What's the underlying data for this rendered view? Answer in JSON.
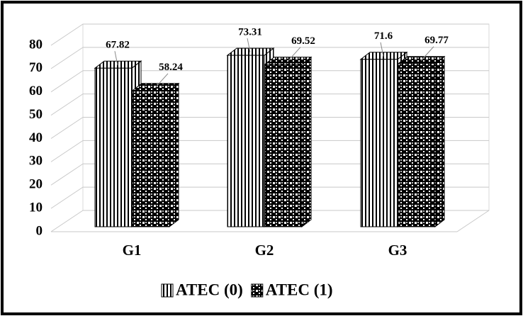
{
  "chart_data": {
    "type": "bar3d",
    "categories": [
      "G1",
      "G2",
      "G3"
    ],
    "series": [
      {
        "name": "ATEC (0)",
        "color": "#000000",
        "pattern": "vertical-lines",
        "values": [
          67.82,
          73.31,
          71.6
        ]
      },
      {
        "name": "ATEC (1)",
        "color": "#000000",
        "pattern": "checker",
        "values": [
          58.24,
          69.52,
          69.77
        ]
      }
    ],
    "ylim": [
      0,
      80
    ],
    "yticks": [
      0,
      10,
      20,
      30,
      40,
      50,
      60,
      70,
      80
    ],
    "grid": true,
    "legend": "bottom"
  }
}
